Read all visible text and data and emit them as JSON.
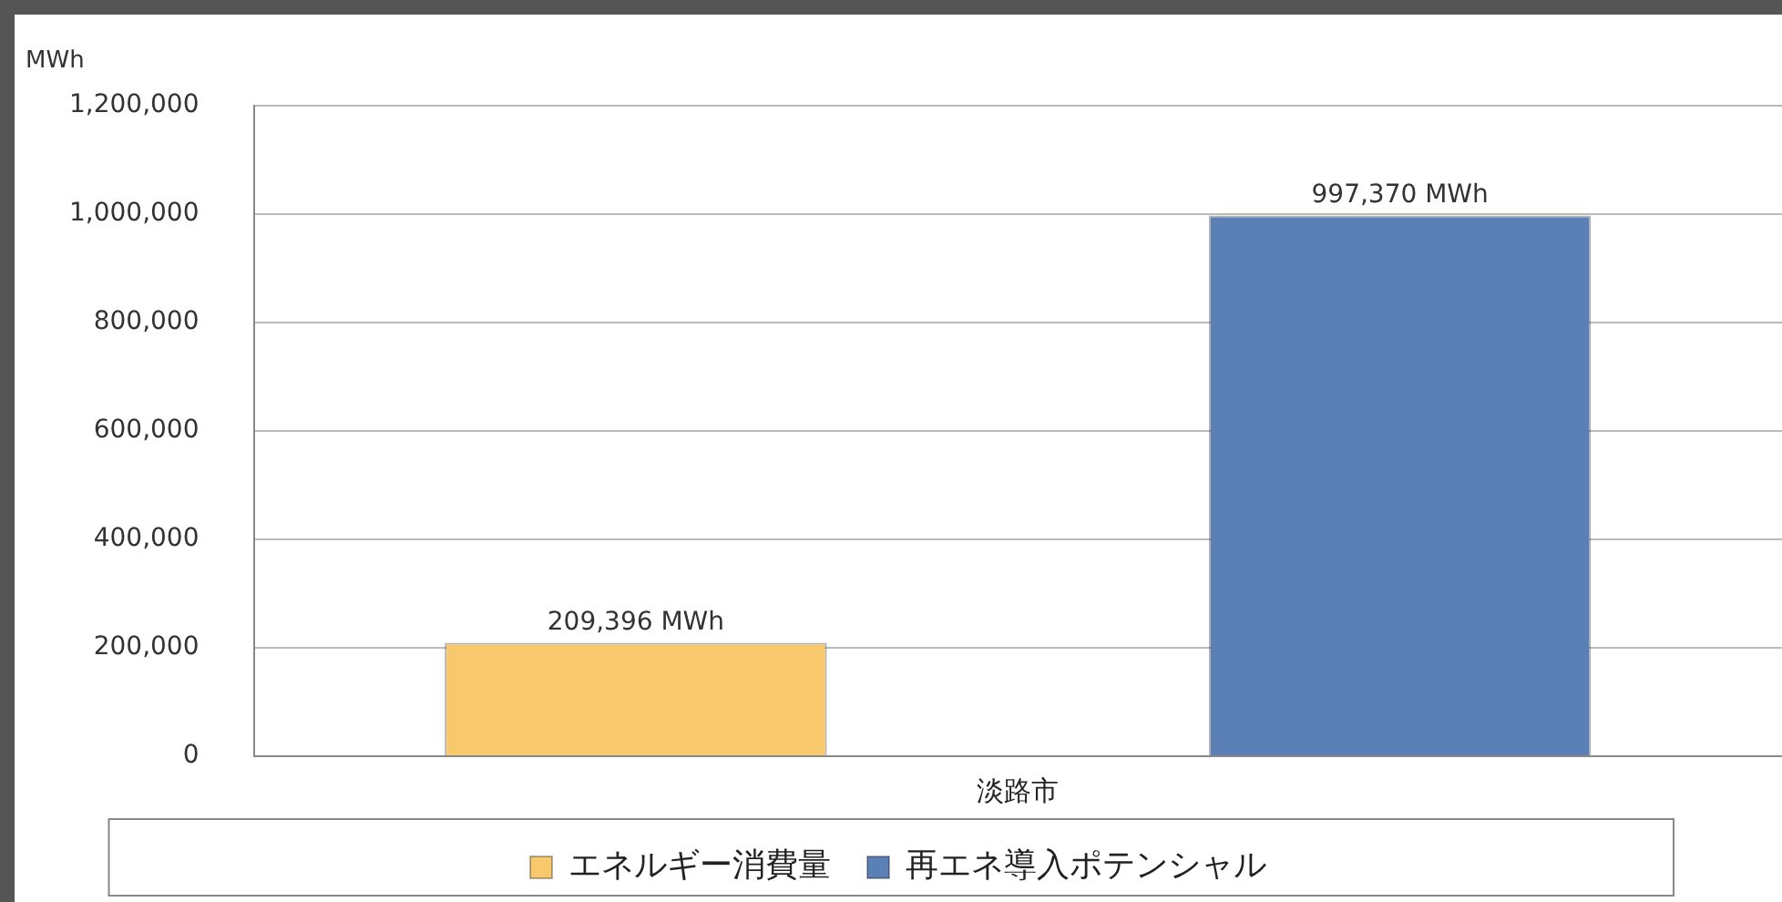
{
  "chart_data": {
    "type": "bar",
    "ylabel": "MWh",
    "categories": [
      "淡路市"
    ],
    "series": [
      {
        "name": "エネルギー消費量",
        "color": "#f8c96c",
        "values": [
          209396
        ],
        "value_labels": [
          "209,396 MWh"
        ]
      },
      {
        "name": "再エネ導入ポテンシャル",
        "color": "#5b80b6",
        "values": [
          997370
        ],
        "value_labels": [
          "997,370 MWh"
        ]
      }
    ],
    "ylim": [
      0,
      1200000
    ],
    "yticks": [
      {
        "value": 0,
        "label": "0"
      },
      {
        "value": 200000,
        "label": "200,000"
      },
      {
        "value": 400000,
        "label": "400,000"
      },
      {
        "value": 600000,
        "label": "600,000"
      },
      {
        "value": 800000,
        "label": "800,000"
      },
      {
        "value": 1000000,
        "label": "1,000,000"
      },
      {
        "value": 1200000,
        "label": "1,200,000"
      }
    ],
    "grid": "y",
    "legend": "bottom"
  }
}
